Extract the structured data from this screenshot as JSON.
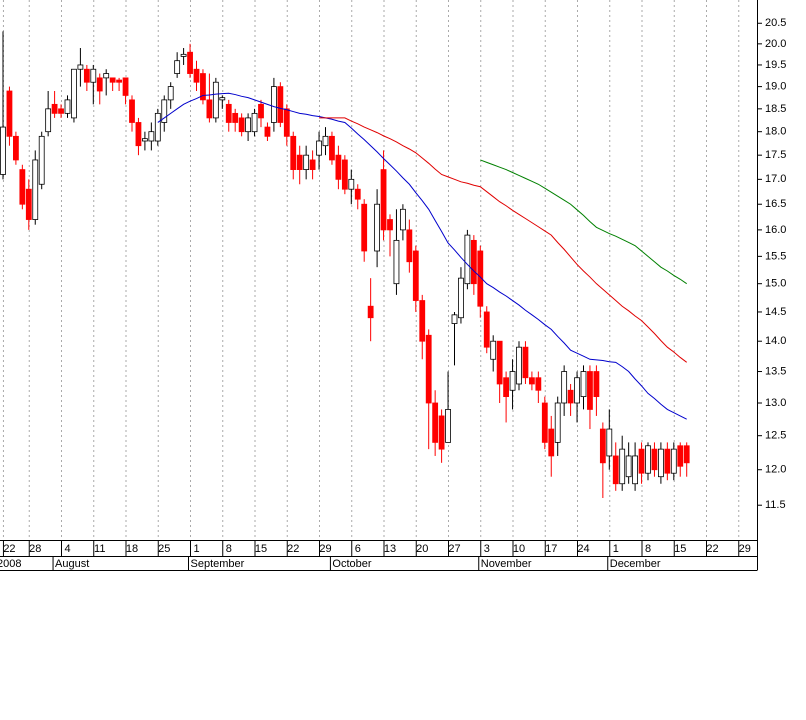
{
  "chart_data": {
    "type": "candlestick",
    "log": true,
    "categories": [
      null,
      "22",
      null,
      null,
      null,
      "28",
      null,
      null,
      null,
      null,
      "4",
      null,
      null,
      null,
      null,
      "11",
      null,
      null,
      null,
      null,
      "18",
      null,
      null,
      null,
      null,
      "25",
      null,
      null,
      null,
      null,
      "1",
      null,
      null,
      null,
      null,
      "8",
      null,
      null,
      null,
      null,
      "15",
      null,
      null,
      null,
      null,
      "22",
      null,
      null,
      null,
      null,
      "29",
      null,
      null,
      null,
      null,
      "6",
      null,
      null,
      null,
      null,
      "13",
      null,
      null,
      null,
      null,
      "20",
      null,
      null,
      null,
      null,
      "27",
      null,
      null,
      null,
      null,
      "3",
      null,
      null,
      null,
      null,
      "10",
      null,
      null,
      null,
      null,
      "17",
      null,
      null,
      null,
      null,
      "24",
      null,
      null,
      null,
      null,
      "1",
      null,
      null,
      null,
      null,
      "8",
      null,
      null,
      null,
      null,
      "15",
      null,
      null,
      null,
      null,
      "22",
      null,
      null,
      null,
      null,
      "29"
    ],
    "months": [
      {
        "label": "2008",
        "index": 0
      },
      {
        "label": "August",
        "index": 9
      },
      {
        "label": "September",
        "index": 30
      },
      {
        "label": "October",
        "index": 52
      },
      {
        "label": "November",
        "index": 75
      },
      {
        "label": "December",
        "index": 95
      }
    ],
    "open": [
      17.1,
      18.9,
      17.9,
      17.2,
      16.8,
      16.2,
      16.9,
      18.0,
      18.6,
      18.5,
      18.4,
      18.3,
      19.4,
      19.4,
      19.1,
      19.2,
      19.2,
      19.2,
      19.15,
      19.2,
      18.7,
      18.2,
      17.8,
      17.8,
      17.8,
      18.2,
      18.7,
      19.3,
      19.7,
      19.8,
      19.4,
      19.3,
      18.7,
      18.3,
      18.7,
      18.6,
      18.4,
      18.3,
      18.0,
      18.0,
      18.6,
      18.1,
      18.2,
      19.0,
      18.5,
      17.9,
      17.5,
      17.2,
      17.4,
      17.5,
      17.7,
      17.9,
      17.5,
      17.4,
      16.8,
      16.8,
      16.5,
      14.6,
      15.6,
      17.2,
      16.2,
      15.0,
      16.0,
      16.0,
      15.6,
      14.7,
      14.1,
      13.0,
      12.8,
      12.4,
      14.3,
      14.4,
      15.0,
      15.8,
      15.6,
      14.5,
      13.7,
      14.0,
      13.4,
      13.2,
      13.3,
      13.9,
      13.4,
      13.4,
      13.0,
      12.6,
      12.4,
      13.0,
      13.2,
      13.0,
      13.1,
      13.5,
      13.5,
      12.6,
      12.2,
      12.2,
      11.8,
      11.9,
      11.8,
      12.3,
      11.95,
      12.3,
      11.9,
      12.3,
      11.95,
      12.35,
      12.35,
      null,
      null,
      null,
      null,
      null,
      null,
      null,
      null,
      null
    ],
    "high": [
      20.3,
      19.0,
      18.0,
      17.3,
      17.0,
      17.6,
      18.0,
      18.9,
      18.9,
      18.6,
      18.8,
      19.4,
      19.9,
      19.5,
      19.5,
      19.3,
      19.4,
      19.2,
      19.2,
      19.2,
      18.8,
      18.3,
      18.0,
      18.2,
      18.5,
      18.8,
      19.1,
      19.8,
      19.9,
      20.0,
      19.6,
      19.4,
      19.3,
      19.2,
      18.8,
      18.7,
      18.5,
      18.4,
      18.4,
      18.5,
      18.7,
      18.2,
      19.2,
      19.1,
      18.6,
      18.0,
      17.7,
      17.7,
      17.6,
      18.0,
      18.1,
      18.0,
      17.7,
      17.5,
      17.2,
      16.9,
      16.6,
      15.1,
      16.8,
      17.6,
      16.3,
      16.4,
      16.5,
      16.2,
      15.7,
      14.8,
      14.2,
      13.2,
      12.9,
      13.5,
      14.5,
      15.3,
      16.0,
      15.9,
      15.7,
      14.6,
      14.1,
      14.0,
      13.5,
      13.7,
      14.0,
      14.0,
      13.5,
      13.5,
      13.1,
      12.8,
      13.1,
      13.6,
      13.3,
      13.5,
      13.6,
      13.6,
      13.6,
      12.7,
      12.9,
      12.4,
      12.5,
      12.4,
      12.4,
      12.4,
      12.4,
      12.4,
      12.4,
      12.4,
      12.4,
      12.4,
      12.4,
      null,
      null,
      null,
      null,
      null,
      null,
      null,
      null,
      null
    ],
    "low": [
      17.0,
      17.7,
      17.3,
      16.4,
      16.0,
      16.1,
      16.8,
      17.9,
      18.3,
      18.3,
      18.3,
      18.2,
      19.0,
      18.9,
      18.6,
      18.6,
      18.8,
      18.9,
      18.9,
      18.6,
      18.0,
      17.5,
      17.6,
      17.6,
      17.7,
      18.0,
      18.5,
      19.2,
      19.5,
      19.2,
      18.9,
      18.6,
      18.2,
      18.2,
      18.5,
      18.0,
      18.0,
      17.9,
      17.8,
      17.9,
      18.1,
      17.8,
      18.0,
      18.1,
      17.7,
      17.0,
      16.9,
      17.0,
      17.0,
      17.2,
      17.5,
      17.3,
      16.8,
      16.7,
      16.5,
      16.4,
      15.4,
      14.0,
      15.3,
      15.8,
      15.5,
      14.8,
      15.8,
      15.2,
      14.5,
      13.7,
      12.3,
      12.2,
      12.1,
      12.4,
      13.6,
      14.3,
      14.9,
      14.8,
      14.4,
      13.8,
      13.5,
      13.0,
      12.7,
      12.9,
      13.2,
      13.3,
      13.2,
      13.0,
      12.3,
      11.9,
      12.2,
      12.8,
      12.8,
      12.7,
      12.9,
      12.6,
      12.8,
      11.6,
      12.0,
      11.7,
      11.7,
      11.8,
      11.7,
      11.8,
      11.85,
      11.9,
      11.8,
      11.85,
      11.85,
      11.9,
      11.9,
      null,
      null,
      null,
      null,
      null,
      null,
      null,
      null,
      null
    ],
    "close": [
      18.1,
      17.9,
      17.4,
      16.5,
      16.2,
      17.4,
      17.9,
      18.5,
      18.4,
      18.4,
      18.7,
      19.4,
      19.5,
      19.1,
      19.4,
      18.9,
      19.3,
      19.1,
      19.1,
      18.8,
      18.2,
      17.7,
      17.85,
      18.0,
      18.4,
      18.7,
      19.0,
      19.6,
      19.75,
      19.3,
      19.1,
      18.7,
      18.3,
      19.1,
      18.75,
      18.2,
      18.2,
      18.0,
      18.3,
      18.4,
      18.3,
      17.9,
      19.0,
      18.2,
      17.9,
      17.2,
      17.2,
      17.5,
      17.2,
      17.8,
      17.9,
      17.4,
      17.0,
      16.8,
      17.0,
      16.6,
      15.6,
      14.4,
      16.5,
      16.0,
      16.0,
      15.8,
      16.4,
      15.4,
      14.7,
      14.0,
      13.0,
      12.4,
      12.3,
      12.9,
      14.45,
      15.1,
      15.9,
      15.0,
      14.6,
      13.9,
      14.0,
      13.3,
      13.1,
      13.5,
      13.9,
      13.4,
      13.3,
      13.2,
      12.4,
      12.2,
      13.0,
      13.5,
      13.0,
      13.4,
      13.5,
      12.9,
      13.1,
      12.1,
      12.6,
      11.8,
      12.3,
      12.2,
      12.2,
      11.95,
      12.35,
      12.0,
      12.3,
      11.95,
      12.3,
      12.05,
      12.1,
      null,
      null,
      null,
      null,
      null,
      null,
      null,
      null,
      null
    ],
    "up_color": "#ffffff",
    "down_color": "#ff0000",
    "series": [
      {
        "color": "#0000cc",
        "values": [
          null,
          null,
          null,
          null,
          null,
          null,
          null,
          null,
          null,
          null,
          null,
          null,
          null,
          null,
          null,
          null,
          null,
          null,
          null,
          null,
          null,
          null,
          null,
          null,
          18.2,
          18.3,
          18.4,
          18.5,
          18.6,
          18.67,
          18.73,
          18.8,
          18.81,
          18.83,
          18.84,
          18.85,
          18.82,
          18.78,
          18.75,
          18.7,
          18.65,
          18.6,
          18.55,
          18.51,
          18.48,
          18.44,
          18.4,
          18.38,
          18.35,
          18.33,
          18.3,
          18.27,
          18.23,
          18.2,
          18.08,
          17.95,
          17.83,
          17.7,
          17.57,
          17.43,
          17.3,
          17.17,
          17.03,
          16.9,
          16.73,
          16.57,
          16.4,
          16.18,
          15.97,
          15.75,
          15.62,
          15.48,
          15.35,
          15.23,
          15.12,
          15.0,
          14.93,
          14.85,
          14.78,
          14.7,
          14.62,
          14.53,
          14.45,
          14.37,
          14.28,
          14.2,
          14.08,
          13.97,
          13.85,
          13.8,
          13.75,
          13.7,
          13.69,
          13.68,
          13.66,
          13.65,
          13.58,
          13.5,
          13.38,
          13.27,
          13.15,
          13.07,
          12.98,
          12.9,
          12.85,
          12.8,
          12.75,
          null,
          null,
          null,
          null,
          null,
          null,
          null,
          null,
          null
        ]
      },
      {
        "color": "#e00000",
        "values": [
          null,
          null,
          null,
          null,
          null,
          null,
          null,
          null,
          null,
          null,
          null,
          null,
          null,
          null,
          null,
          null,
          null,
          null,
          null,
          null,
          null,
          null,
          null,
          null,
          null,
          null,
          null,
          null,
          null,
          null,
          null,
          null,
          null,
          null,
          null,
          null,
          null,
          null,
          null,
          null,
          null,
          null,
          null,
          null,
          null,
          null,
          null,
          null,
          null,
          18.3,
          18.3,
          18.3,
          18.3,
          18.3,
          18.23,
          18.17,
          18.1,
          18.04,
          17.98,
          17.91,
          17.85,
          17.78,
          17.7,
          17.63,
          17.55,
          17.44,
          17.33,
          17.21,
          17.1,
          17.05,
          17.0,
          16.95,
          16.92,
          16.88,
          16.85,
          16.75,
          16.65,
          16.55,
          16.47,
          16.38,
          16.3,
          16.22,
          16.14,
          16.06,
          15.98,
          15.9,
          15.76,
          15.63,
          15.49,
          15.35,
          15.23,
          15.12,
          15.0,
          14.9,
          14.8,
          14.7,
          14.6,
          14.52,
          14.43,
          14.35,
          14.24,
          14.13,
          14.01,
          13.9,
          13.82,
          13.73,
          13.65,
          null,
          null,
          null,
          null,
          null,
          null,
          null,
          null,
          null
        ]
      },
      {
        "color": "#008000",
        "values": [
          null,
          null,
          null,
          null,
          null,
          null,
          null,
          null,
          null,
          null,
          null,
          null,
          null,
          null,
          null,
          null,
          null,
          null,
          null,
          null,
          null,
          null,
          null,
          null,
          null,
          null,
          null,
          null,
          null,
          null,
          null,
          null,
          null,
          null,
          null,
          null,
          null,
          null,
          null,
          null,
          null,
          null,
          null,
          null,
          null,
          null,
          null,
          null,
          null,
          null,
          null,
          null,
          null,
          null,
          null,
          null,
          null,
          null,
          null,
          null,
          null,
          null,
          null,
          null,
          null,
          null,
          null,
          null,
          null,
          null,
          null,
          null,
          null,
          null,
          17.4,
          17.35,
          17.3,
          17.25,
          17.2,
          17.14,
          17.08,
          17.02,
          16.96,
          16.9,
          16.82,
          16.74,
          16.66,
          16.58,
          16.5,
          16.39,
          16.28,
          16.16,
          16.05,
          15.99,
          15.93,
          15.88,
          15.82,
          15.76,
          15.7,
          15.6,
          15.5,
          15.4,
          15.3,
          15.23,
          15.15,
          15.08,
          15.0,
          null,
          null,
          null,
          null,
          null,
          null,
          null,
          null,
          null
        ]
      }
    ],
    "ylim": [
      11.03,
      21.08
    ],
    "yticks": [
      11.5,
      {
        "value": 12,
        "label": "12.0"
      },
      12.5,
      {
        "value": 13,
        "label": "13.0"
      },
      13.5,
      {
        "value": 14,
        "label": "14.0"
      },
      14.5,
      {
        "value": 15,
        "label": "15.0"
      },
      15.5,
      {
        "value": 16,
        "label": "16.0"
      },
      16.5,
      {
        "value": 17,
        "label": "17.0"
      },
      17.5,
      {
        "value": 18,
        "label": "18.0"
      },
      18.5,
      {
        "value": 19,
        "label": "19.0"
      },
      19.5,
      {
        "value": 20,
        "label": "20.0"
      },
      20.5
    ],
    "grid": true
  }
}
